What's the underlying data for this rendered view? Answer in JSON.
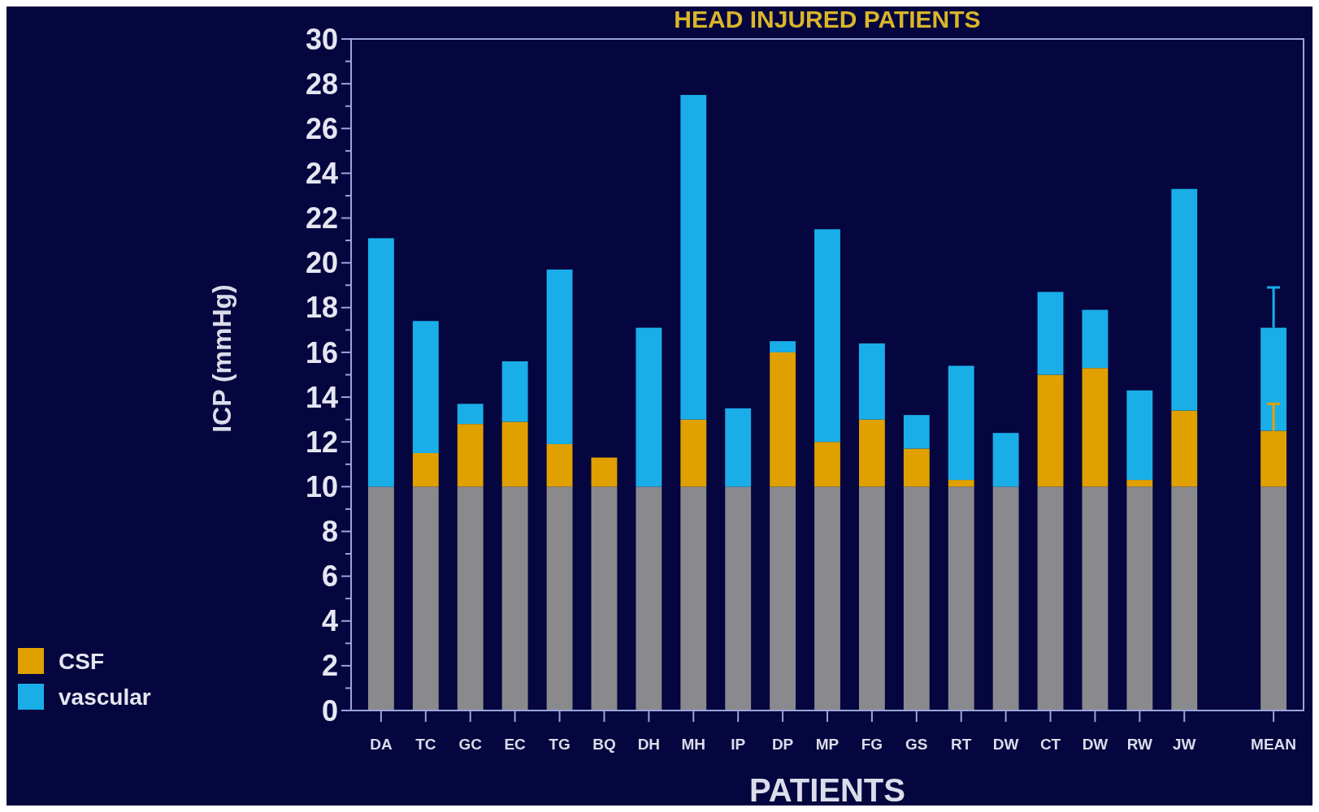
{
  "chart_data": {
    "type": "bar",
    "title": "HEAD INJURED PATIENTS",
    "xlabel": "PATIENTS",
    "ylabel": "ICP (mmHg)",
    "categories": [
      "DA",
      "TC",
      "GC",
      "EC",
      "TG",
      "BQ",
      "DH",
      "MH",
      "IP",
      "DP",
      "MP",
      "FG",
      "GS",
      "RT",
      "DW",
      "CT",
      "DW",
      "RW",
      "JW",
      null,
      "MEAN"
    ],
    "stacked": true,
    "series": [
      {
        "color": "#8a8a8e",
        "values": [
          10,
          10,
          10,
          10,
          10,
          10,
          10,
          10,
          10,
          10,
          10,
          10,
          10,
          10,
          10,
          10,
          10,
          10,
          10,
          null,
          10
        ]
      },
      {
        "name": "CSF",
        "color": "#e0a000",
        "values": [
          0,
          1.5,
          2.8,
          2.9,
          1.9,
          1.3,
          0,
          3.0,
          0,
          6.0,
          2.0,
          3.0,
          1.7,
          0.3,
          0,
          5.0,
          5.3,
          0.3,
          3.4,
          null,
          2.5
        ],
        "errors": [
          null,
          null,
          null,
          null,
          null,
          null,
          null,
          null,
          null,
          null,
          null,
          null,
          null,
          null,
          null,
          null,
          null,
          null,
          null,
          null,
          1.2
        ]
      },
      {
        "name": "vascular",
        "color": "#1aaee8",
        "values": [
          11.1,
          5.9,
          0.9,
          2.7,
          7.8,
          0,
          7.1,
          14.5,
          3.5,
          0.5,
          9.5,
          3.4,
          1.5,
          5.1,
          2.4,
          3.7,
          2.6,
          4.0,
          9.9,
          null,
          4.6
        ],
        "errors": [
          null,
          null,
          null,
          null,
          null,
          null,
          null,
          null,
          null,
          null,
          null,
          null,
          null,
          null,
          null,
          null,
          null,
          null,
          null,
          null,
          1.8
        ]
      }
    ],
    "ylim": [
      0,
      30
    ],
    "yticks": [
      0,
      {
        "value": 1,
        "label": null
      },
      2,
      {
        "value": 3,
        "label": null
      },
      4,
      {
        "value": 5,
        "label": null
      },
      6,
      {
        "value": 7,
        "label": null
      },
      8,
      {
        "value": 9,
        "label": null
      },
      10,
      {
        "value": 11,
        "label": null
      },
      12,
      {
        "value": 13,
        "label": null
      },
      14,
      {
        "value": 15,
        "label": null
      },
      16,
      {
        "value": 17,
        "label": null
      },
      18,
      {
        "value": 19,
        "label": null
      },
      20,
      {
        "value": 21,
        "label": null
      },
      22,
      {
        "value": 23,
        "label": null
      },
      24,
      {
        "value": 25,
        "label": null
      },
      26,
      {
        "value": 27,
        "label": null
      },
      28,
      {
        "value": 29,
        "label": null
      },
      30
    ],
    "legend": "bottom left",
    "grid": false
  }
}
